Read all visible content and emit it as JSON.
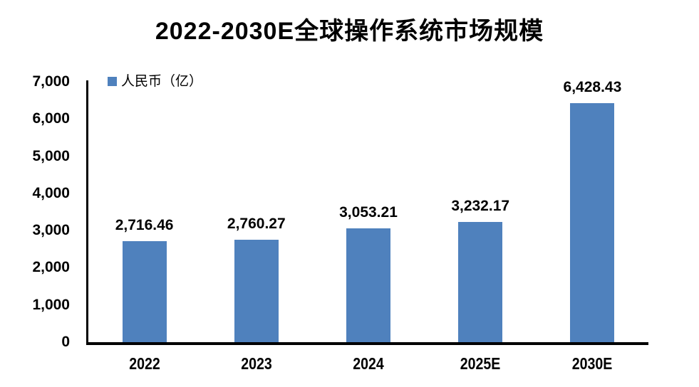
{
  "title": "2022-2030E全球操作系统市场规模",
  "legend": {
    "label": "人民币（亿）",
    "swatch_color": "#4F81BD"
  },
  "chart_data": {
    "type": "bar",
    "title": "2022-2030E全球操作系统市场规模",
    "categories": [
      "2022",
      "2023",
      "2024",
      "2025E",
      "2030E"
    ],
    "values": [
      2716.46,
      2760.27,
      3053.21,
      3232.17,
      6428.43
    ],
    "value_labels": [
      "2,716.46",
      "2,760.27",
      "3,053.21",
      "3,232.17",
      "6,428.43"
    ],
    "series_name": "人民币（亿）",
    "xlabel": "",
    "ylabel": "",
    "ylim": [
      0,
      7000
    ],
    "ytick_interval": 1000,
    "yticks": [
      "0",
      "1,000",
      "2,000",
      "3,000",
      "4,000",
      "5,000",
      "6,000",
      "7,000"
    ],
    "legend_position": "top-left",
    "grid": false,
    "bar_color": "#4F81BD",
    "axis_color": "#000000",
    "background_color": "#FFFFFF"
  }
}
